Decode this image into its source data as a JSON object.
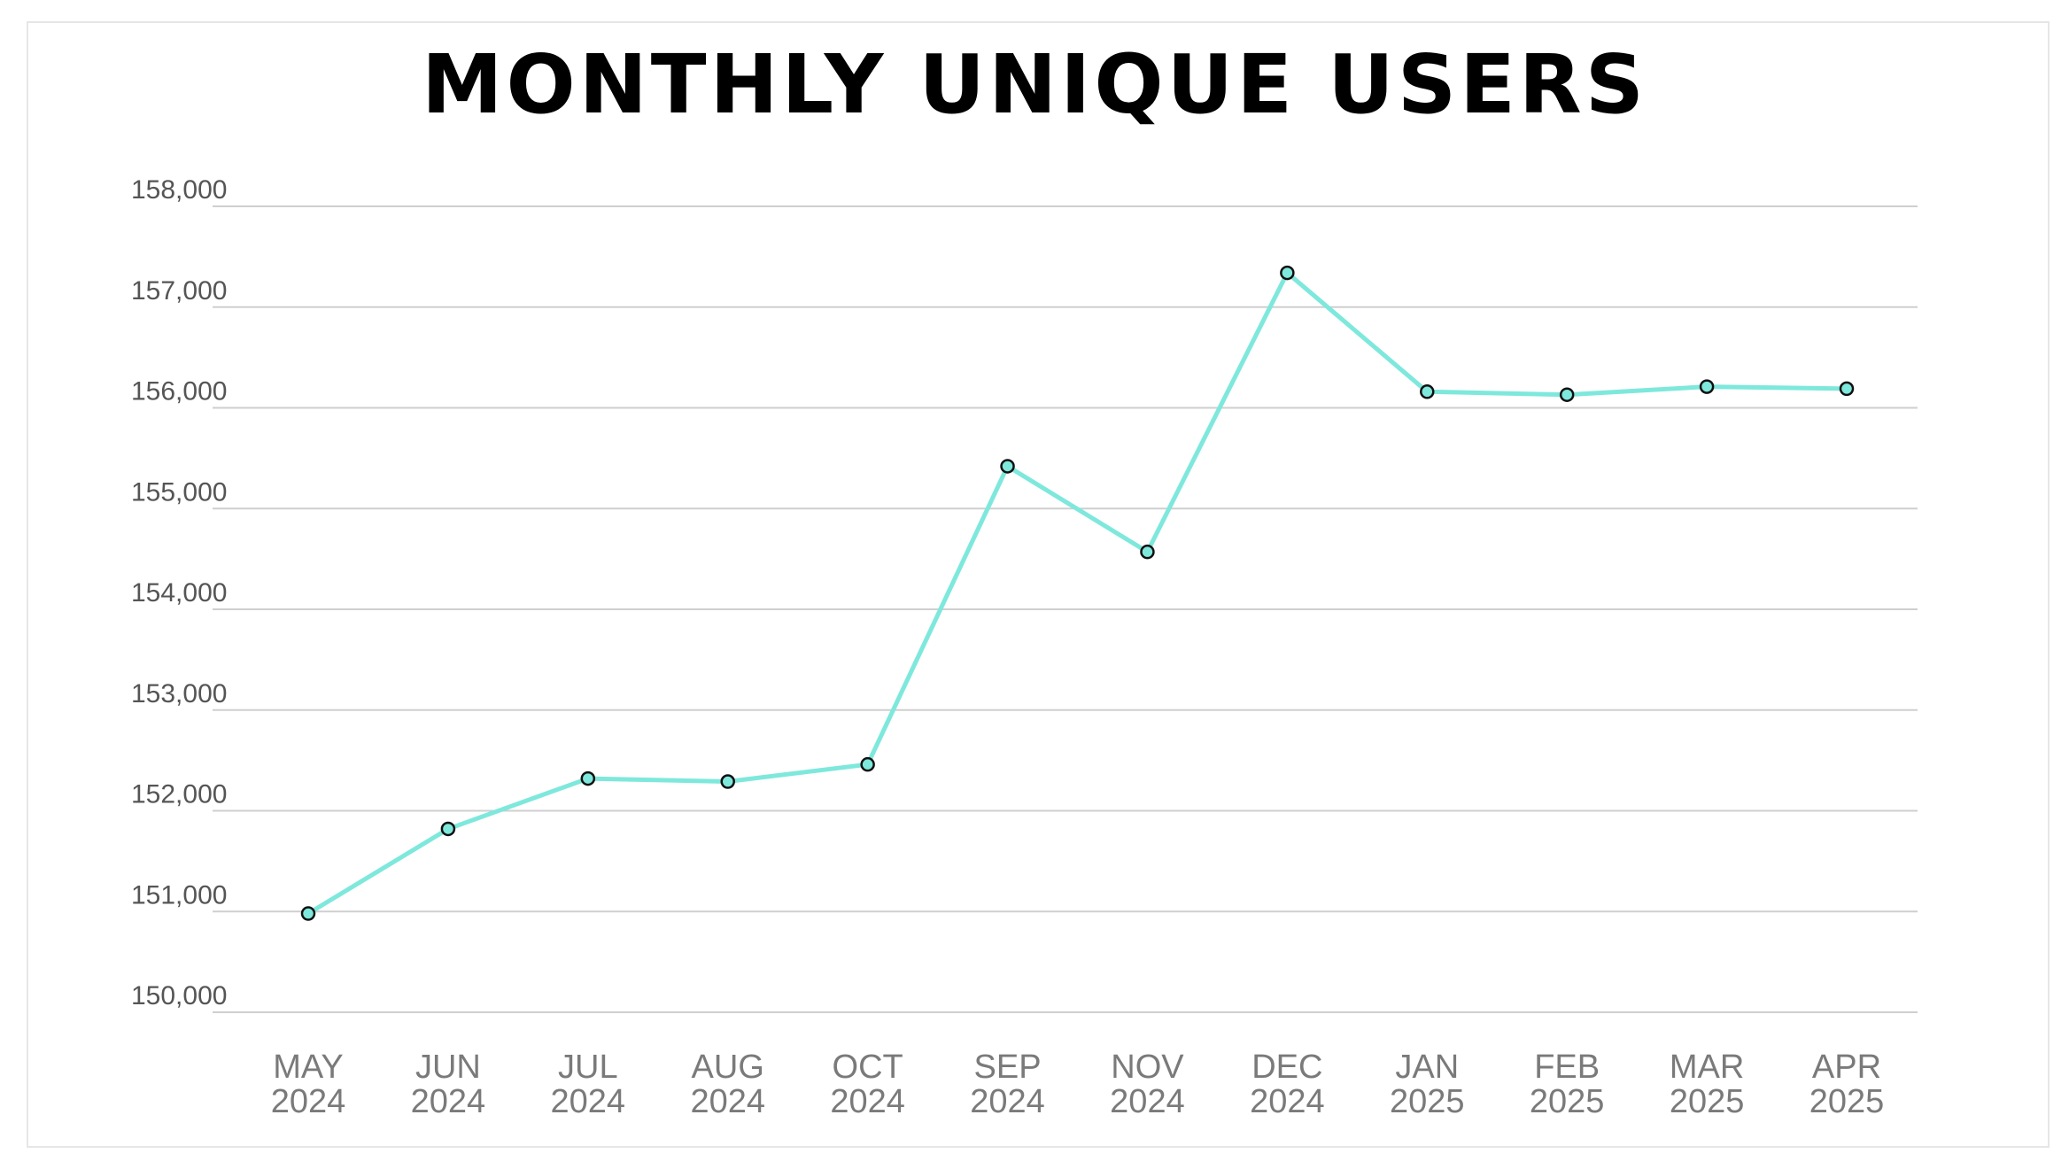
{
  "chart_data": {
    "type": "line",
    "title": "MONTHLY UNIQUE USERS",
    "xlabel": "",
    "ylabel": "",
    "categories": [
      [
        "MAY",
        "2024"
      ],
      [
        "JUN",
        "2024"
      ],
      [
        "JUL",
        "2024"
      ],
      [
        "AUG",
        "2024"
      ],
      [
        "OCT",
        "2024"
      ],
      [
        "SEP",
        "2024"
      ],
      [
        "NOV",
        "2024"
      ],
      [
        "DEC",
        "2024"
      ],
      [
        "JAN",
        "2025"
      ],
      [
        "FEB",
        "2025"
      ],
      [
        "MAR",
        "2025"
      ],
      [
        "APR",
        "2025"
      ]
    ],
    "series": [
      {
        "values": [
          150980,
          151820,
          152320,
          152290,
          152460,
          155420,
          154570,
          157340,
          156160,
          156130,
          156210,
          156190
        ]
      }
    ],
    "ylim": [
      150000,
      158000
    ],
    "yticks": [
      150000,
      151000,
      152000,
      153000,
      154000,
      155000,
      156000,
      157000,
      158000
    ],
    "ytick_labels": [
      "150,000",
      "151,000",
      "152,000",
      "153,000",
      "154,000",
      "155,000",
      "156,000",
      "157,000",
      "158,000"
    ],
    "grid": true,
    "colors": {
      "line": "#7ee8dc",
      "marker_fill": "#7ee8dc",
      "marker_stroke": "#111111",
      "grid": "#cfcfcf"
    }
  }
}
